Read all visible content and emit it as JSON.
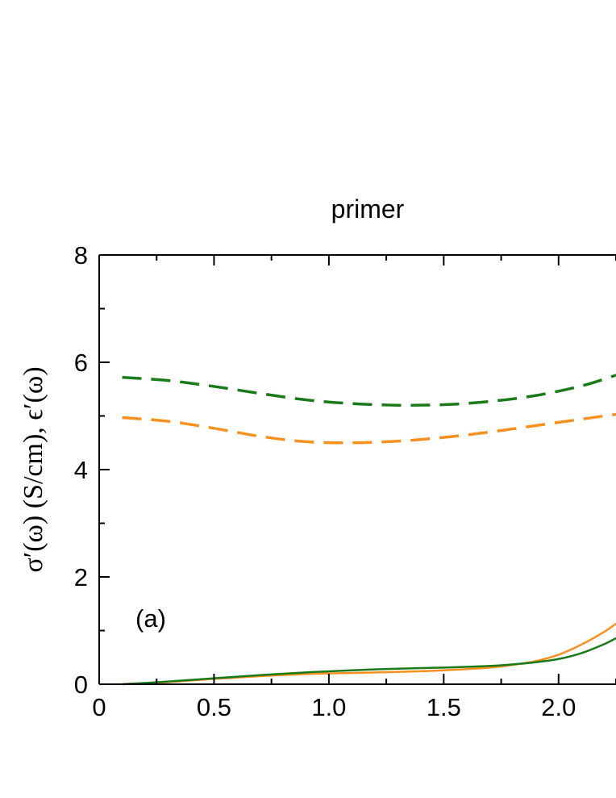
{
  "chart_data": {
    "type": "line",
    "title": "primer",
    "panel_label": "(a)",
    "ylabel": "σ′(ω) (S/cm), ϵ′(ω)",
    "xlabel": "",
    "xlim": [
      0,
      2.25
    ],
    "ylim": [
      0,
      8
    ],
    "x_ticks": [
      {
        "value": 0,
        "label": "0"
      },
      {
        "value": 0.5,
        "label": "0.5"
      },
      {
        "value": 1.0,
        "label": "1.0"
      },
      {
        "value": 1.5,
        "label": "1.5"
      },
      {
        "value": 2.0,
        "label": "2.0"
      }
    ],
    "y_ticks": [
      {
        "value": 0,
        "label": "0"
      },
      {
        "value": 2,
        "label": "2"
      },
      {
        "value": 4,
        "label": "4"
      },
      {
        "value": 6,
        "label": "6"
      },
      {
        "value": 8,
        "label": "8"
      }
    ],
    "x_minor_step": 0.25,
    "y_minor_step": 1,
    "series": [
      {
        "color": "#1a7a1a",
        "style": "dashed",
        "x": [
          0.1,
          0.3,
          0.5,
          0.7,
          0.9,
          1.1,
          1.3,
          1.5,
          1.7,
          1.9,
          2.1,
          2.25
        ],
        "y": [
          5.72,
          5.66,
          5.55,
          5.42,
          5.3,
          5.23,
          5.2,
          5.21,
          5.27,
          5.38,
          5.56,
          5.76
        ]
      },
      {
        "color": "#f7901e",
        "style": "dashed",
        "x": [
          0.1,
          0.3,
          0.5,
          0.7,
          0.9,
          1.1,
          1.3,
          1.5,
          1.7,
          1.9,
          2.1,
          2.25
        ],
        "y": [
          4.97,
          4.9,
          4.77,
          4.62,
          4.52,
          4.5,
          4.53,
          4.6,
          4.7,
          4.82,
          4.94,
          5.03
        ]
      },
      {
        "color": "#f7901e",
        "style": "solid",
        "x": [
          0.1,
          0.3,
          0.5,
          0.7,
          0.9,
          1.1,
          1.3,
          1.5,
          1.7,
          1.8,
          1.9,
          2.0,
          2.1,
          2.2,
          2.25
        ],
        "y": [
          0.0,
          0.04,
          0.1,
          0.15,
          0.19,
          0.21,
          0.23,
          0.26,
          0.31,
          0.36,
          0.43,
          0.55,
          0.74,
          0.98,
          1.13
        ]
      },
      {
        "color": "#1a7a1a",
        "style": "solid",
        "x": [
          0.1,
          0.3,
          0.5,
          0.7,
          0.9,
          1.1,
          1.3,
          1.5,
          1.7,
          1.8,
          1.9,
          2.0,
          2.1,
          2.2,
          2.25
        ],
        "y": [
          0.0,
          0.05,
          0.11,
          0.17,
          0.22,
          0.26,
          0.29,
          0.31,
          0.34,
          0.37,
          0.41,
          0.47,
          0.58,
          0.75,
          0.86
        ]
      }
    ]
  }
}
